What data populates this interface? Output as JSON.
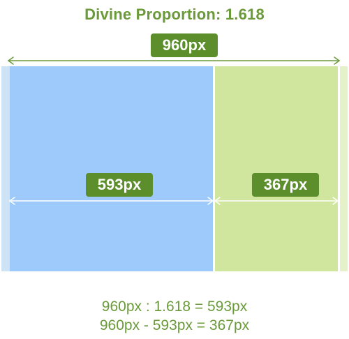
{
  "title": "Divine Proportion: 1.618",
  "total_width_label": "960px",
  "major_width_label": "593px",
  "minor_width_label": "367px",
  "formulas": {
    "ratio": "960px : 1.618 = 593px",
    "difference": "960px - 593px = 367px"
  },
  "colors": {
    "accent_text": "#6b9a3a",
    "badge_bg": "#5c8f2c",
    "major_block": "#9ec9fb",
    "minor_block": "#d0e59e",
    "arrow": "#6b9a3a"
  }
}
